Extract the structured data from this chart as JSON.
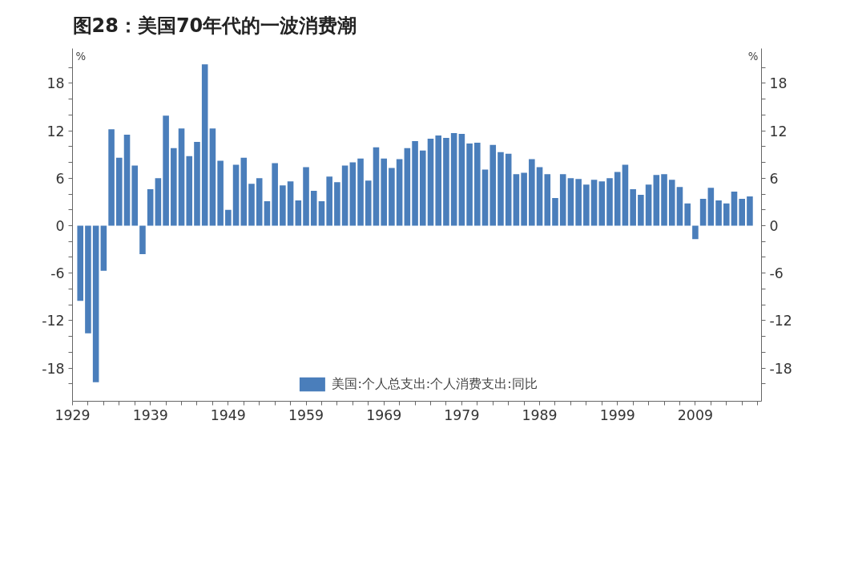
{
  "chart_data": {
    "type": "bar",
    "title": "图28：美国70年代的一波消费潮",
    "ylabel": "%",
    "y2label": "%",
    "x": [
      1930,
      1931,
      1932,
      1933,
      1934,
      1935,
      1936,
      1937,
      1938,
      1939,
      1940,
      1941,
      1942,
      1943,
      1944,
      1945,
      1946,
      1947,
      1948,
      1949,
      1950,
      1951,
      1952,
      1953,
      1954,
      1955,
      1956,
      1957,
      1958,
      1959,
      1960,
      1961,
      1962,
      1963,
      1964,
      1965,
      1966,
      1967,
      1968,
      1969,
      1970,
      1971,
      1972,
      1973,
      1974,
      1975,
      1976,
      1977,
      1978,
      1979,
      1980,
      1981,
      1982,
      1983,
      1984,
      1985,
      1986,
      1987,
      1988,
      1989,
      1990,
      1991,
      1992,
      1993,
      1994,
      1995,
      1996,
      1997,
      1998,
      1999,
      2000,
      2001,
      2002,
      2003,
      2004,
      2005,
      2006,
      2007,
      2008,
      2009,
      2010,
      2011,
      2012,
      2013,
      2014,
      2015,
      2016
    ],
    "series": [
      {
        "name": "美国:个人总支出:个人消费支出:同比",
        "color": "#4a7ebb",
        "values": [
          -9.5,
          -13.6,
          -19.8,
          -5.7,
          12.2,
          8.6,
          11.5,
          7.6,
          -3.6,
          4.6,
          6.0,
          13.9,
          9.8,
          12.3,
          8.8,
          10.6,
          20.4,
          12.3,
          8.2,
          2.0,
          7.7,
          8.6,
          5.3,
          6.0,
          3.1,
          7.9,
          5.1,
          5.6,
          3.2,
          7.4,
          4.4,
          3.1,
          6.2,
          5.5,
          7.6,
          8.0,
          8.5,
          5.7,
          9.9,
          8.5,
          7.3,
          8.4,
          9.8,
          10.7,
          9.5,
          11.0,
          11.4,
          11.1,
          11.7,
          11.6,
          10.4,
          10.5,
          7.1,
          10.2,
          9.3,
          9.1,
          6.5,
          6.7,
          8.4,
          7.4,
          6.5,
          3.5,
          6.5,
          6.0,
          5.9,
          5.2,
          5.8,
          5.6,
          6.0,
          6.8,
          7.7,
          4.6,
          3.9,
          5.2,
          6.4,
          6.5,
          5.8,
          4.9,
          2.8,
          -1.7,
          3.4,
          4.8,
          3.2,
          2.8,
          4.3,
          3.4,
          3.7
        ]
      }
    ],
    "xlim": [
      1929,
      2017.5
    ],
    "xticks": [
      1929,
      {
        "value": 1931,
        "label": null
      },
      {
        "value": 1933,
        "label": null
      },
      {
        "value": 1935,
        "label": null
      },
      {
        "value": 1937,
        "label": null
      },
      1939,
      {
        "value": 1941,
        "label": null
      },
      {
        "value": 1943,
        "label": null
      },
      {
        "value": 1945,
        "label": null
      },
      {
        "value": 1947,
        "label": null
      },
      1949,
      {
        "value": 1951,
        "label": null
      },
      {
        "value": 1953,
        "label": null
      },
      {
        "value": 1955,
        "label": null
      },
      {
        "value": 1957,
        "label": null
      },
      1959,
      {
        "value": 1961,
        "label": null
      },
      {
        "value": 1963,
        "label": null
      },
      {
        "value": 1965,
        "label": null
      },
      {
        "value": 1967,
        "label": null
      },
      1969,
      {
        "value": 1971,
        "label": null
      },
      {
        "value": 1973,
        "label": null
      },
      {
        "value": 1975,
        "label": null
      },
      {
        "value": 1977,
        "label": null
      },
      1979,
      {
        "value": 1981,
        "label": null
      },
      {
        "value": 1983,
        "label": null
      },
      {
        "value": 1985,
        "label": null
      },
      {
        "value": 1987,
        "label": null
      },
      1989,
      {
        "value": 1991,
        "label": null
      },
      {
        "value": 1993,
        "label": null
      },
      {
        "value": 1995,
        "label": null
      },
      {
        "value": 1997,
        "label": null
      },
      1999,
      {
        "value": 2001,
        "label": null
      },
      {
        "value": 2003,
        "label": null
      },
      {
        "value": 2005,
        "label": null
      },
      {
        "value": 2007,
        "label": null
      },
      2009,
      {
        "value": 2011,
        "label": null
      },
      {
        "value": 2013,
        "label": null
      },
      {
        "value": 2015,
        "label": null
      },
      {
        "value": 2017,
        "label": null
      }
    ],
    "ylim": [
      -22.2,
      22.4
    ],
    "yticks": [
      {
        "value": -20,
        "label": null
      },
      -18,
      {
        "value": -16,
        "label": null
      },
      {
        "value": -14,
        "label": null
      },
      -12,
      {
        "value": -10,
        "label": null
      },
      {
        "value": -8,
        "label": null
      },
      -6,
      {
        "value": -4,
        "label": null
      },
      {
        "value": -2,
        "label": null
      },
      0,
      {
        "value": 2,
        "label": null
      },
      {
        "value": 4,
        "label": null
      },
      6,
      {
        "value": 8,
        "label": null
      },
      {
        "value": 10,
        "label": null
      },
      12,
      {
        "value": 14,
        "label": null
      },
      {
        "value": 16,
        "label": null
      },
      18,
      {
        "value": 20,
        "label": null
      }
    ],
    "y2lim": [
      -22.2,
      22.4
    ],
    "y2ticks": [
      {
        "value": -20,
        "label": null
      },
      -18,
      {
        "value": -16,
        "label": null
      },
      {
        "value": -14,
        "label": null
      },
      -12,
      {
        "value": -10,
        "label": null
      },
      {
        "value": -8,
        "label": null
      },
      -6,
      {
        "value": -4,
        "label": null
      },
      {
        "value": -2,
        "label": null
      },
      0,
      {
        "value": 2,
        "label": null
      },
      {
        "value": 4,
        "label": null
      },
      6,
      {
        "value": 8,
        "label": null
      },
      {
        "value": 10,
        "label": null
      },
      12,
      {
        "value": 14,
        "label": null
      },
      {
        "value": 16,
        "label": null
      },
      18,
      {
        "value": 20,
        "label": null
      }
    ],
    "grid": false,
    "legend": "bottom"
  }
}
